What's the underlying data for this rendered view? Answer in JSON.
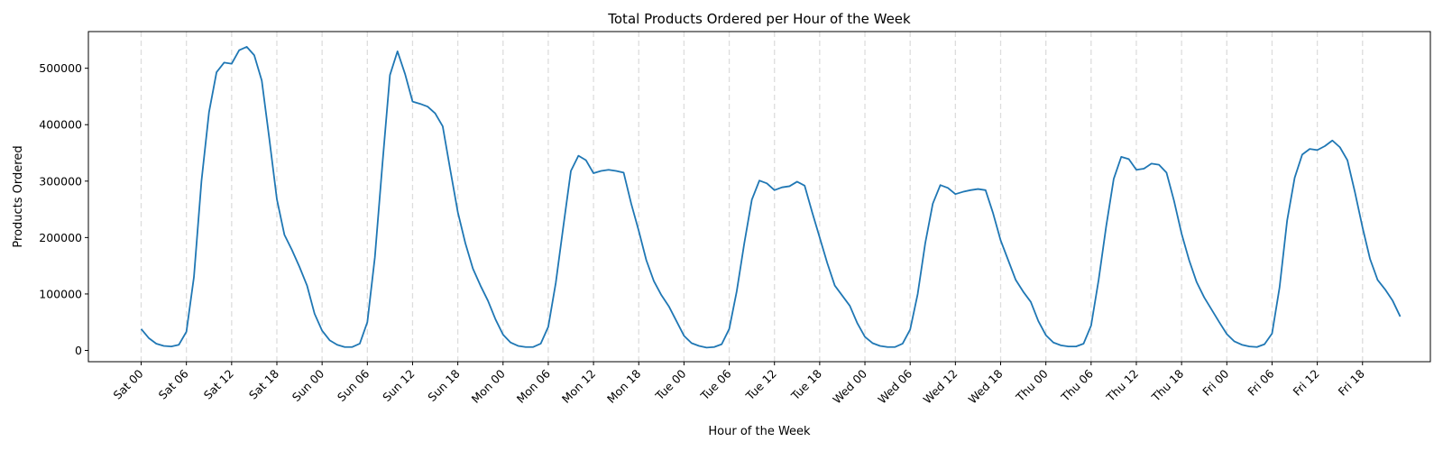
{
  "chart_data": {
    "type": "line",
    "title": "Total Products Ordered per Hour of the Week",
    "xlabel": "Hour of the Week",
    "ylabel": "Products Ordered",
    "ylim": [
      -20000,
      565000
    ],
    "xlim": [
      -7,
      171
    ],
    "yticks": [
      0,
      100000,
      200000,
      300000,
      400000,
      500000
    ],
    "ytick_labels": [
      "0",
      "100000",
      "200000",
      "300000",
      "400000",
      "500000"
    ],
    "xticks": [
      0,
      6,
      12,
      18,
      24,
      30,
      36,
      42,
      48,
      54,
      60,
      66,
      72,
      78,
      84,
      90,
      96,
      102,
      108,
      114,
      120,
      126,
      132,
      138,
      144,
      150,
      156,
      162
    ],
    "xtick_labels": [
      "Sat 00",
      "Sat 06",
      "Sat 12",
      "Sat 18",
      "Sun 00",
      "Sun 06",
      "Sun 12",
      "Sun 18",
      "Mon 00",
      "Mon 06",
      "Mon 12",
      "Mon 18",
      "Tue 00",
      "Tue 06",
      "Tue 12",
      "Tue 18",
      "Wed 00",
      "Wed 06",
      "Wed 12",
      "Wed 18",
      "Thu 00",
      "Thu 06",
      "Thu 12",
      "Thu 18",
      "Fri 00",
      "Fri 06",
      "Fri 12",
      "Fri 18"
    ],
    "day_separators": [
      0,
      6,
      12,
      18,
      24,
      30,
      36,
      42,
      48,
      54,
      60,
      66,
      72,
      78,
      84,
      90,
      96,
      102,
      108,
      114,
      120,
      126,
      132,
      138,
      144,
      150,
      156,
      162
    ],
    "grid": "vertical dashed lines at day ticks",
    "line_color": "#1f77b4",
    "separator_color": "#dddddd",
    "series": [
      {
        "values": [
          38000,
          22000,
          12000,
          8000,
          7000,
          10000,
          33000,
          130000,
          300000,
          422000,
          493000,
          510000,
          508000,
          532000,
          538000,
          523000,
          478000,
          375000,
          268000,
          205000,
          178000,
          148000,
          115000,
          65000,
          35000,
          18000,
          10000,
          6000,
          6000,
          12000,
          50000,
          165000,
          330000,
          488000,
          530000,
          490000,
          441000,
          437000,
          432000,
          420000,
          397000,
          320000,
          245000,
          190000,
          145000,
          115000,
          88000,
          55000,
          28000,
          14000,
          8000,
          6000,
          6000,
          12000,
          42000,
          120000,
          220000,
          318000,
          345000,
          337000,
          314000,
          318000,
          320000,
          318000,
          315000,
          260000,
          212000,
          160000,
          123000,
          98000,
          78000,
          52000,
          26000,
          13000,
          8000,
          5000,
          6000,
          11000,
          38000,
          105000,
          190000,
          267000,
          301000,
          296000,
          284000,
          289000,
          291000,
          299000,
          292000,
          245000,
          200000,
          155000,
          115000,
          97000,
          79000,
          48000,
          24000,
          13000,
          8000,
          6000,
          6000,
          12000,
          37000,
          100000,
          190000,
          260000,
          293000,
          288000,
          277000,
          281000,
          284000,
          286000,
          284000,
          243000,
          195000,
          160000,
          125000,
          104000,
          86000,
          52000,
          27000,
          14000,
          9000,
          7000,
          7000,
          12000,
          44000,
          125000,
          220000,
          304000,
          343000,
          339000,
          320000,
          322000,
          331000,
          329000,
          315000,
          265000,
          207000,
          160000,
          121000,
          94000,
          72000,
          50000,
          29000,
          16000,
          10000,
          7000,
          6000,
          11000,
          30000,
          112000,
          230000,
          306000,
          347000,
          357000,
          355000,
          362000,
          372000,
          360000,
          337000,
          280000,
          218000,
          162000,
          125000,
          108000,
          88000,
          60000
        ]
      }
    ]
  }
}
